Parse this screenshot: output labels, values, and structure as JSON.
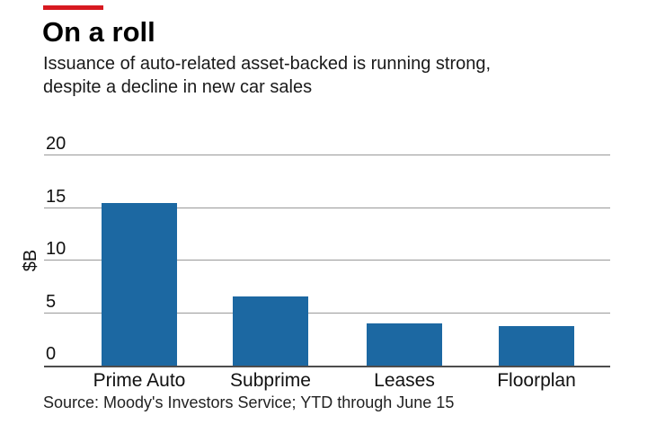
{
  "header": {
    "title": "On a roll",
    "subtitle_line1": "Issuance of auto-related asset-backed is running strong,",
    "subtitle_line2": "despite a decline in new car sales",
    "accent_color": "#d71920"
  },
  "chart_data": {
    "type": "bar",
    "title": "On a roll",
    "subtitle": "Issuance of auto-related asset-backed is running strong, despite a decline in new car sales",
    "categories": [
      "Prime Auto",
      "Subprime",
      "Leases",
      "Floorplan"
    ],
    "values": [
      15.5,
      6.6,
      4.0,
      3.8
    ],
    "xlabel": "",
    "ylabel": "$B",
    "ylim": [
      0,
      20
    ],
    "yticks": [
      0,
      5,
      10,
      15,
      20
    ],
    "grid": true,
    "legend": "none",
    "bar_color": "#1c68a2",
    "gridline_color": "#999999",
    "axis_color": "#4d4d4d"
  },
  "footer": {
    "source": "Source: Moody's Investors Service; YTD through June 15"
  }
}
